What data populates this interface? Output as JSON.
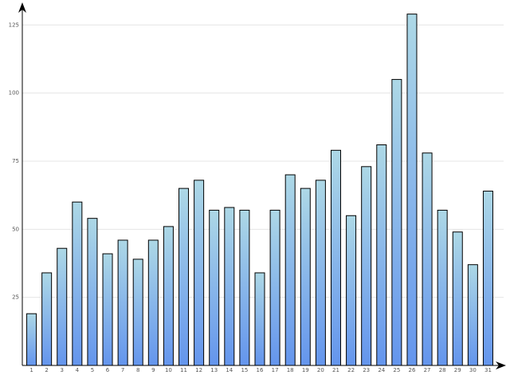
{
  "chart_data": {
    "type": "bar",
    "categories": [
      "1",
      "2",
      "3",
      "4",
      "5",
      "6",
      "7",
      "8",
      "9",
      "10",
      "11",
      "12",
      "13",
      "14",
      "15",
      "16",
      "17",
      "18",
      "19",
      "20",
      "21",
      "22",
      "23",
      "24",
      "25",
      "26",
      "27",
      "28",
      "29",
      "30",
      "31"
    ],
    "values": [
      19,
      34,
      43,
      60,
      54,
      41,
      46,
      39,
      46,
      51,
      65,
      68,
      57,
      58,
      57,
      34,
      57,
      70,
      65,
      68,
      79,
      55,
      73,
      81,
      105,
      129,
      78,
      57,
      49,
      37,
      64
    ],
    "color_top": "#add8e6",
    "color_bottom": "#6495ed",
    "ylim": [
      0,
      133
    ],
    "yticks": [
      25,
      50,
      75,
      100,
      125
    ],
    "grid": true
  }
}
